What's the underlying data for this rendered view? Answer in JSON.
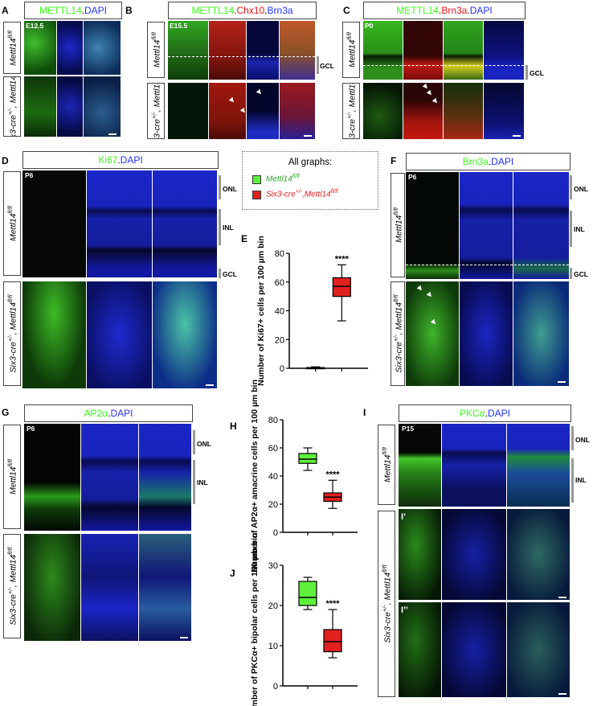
{
  "panels": {
    "A": {
      "letter": "A",
      "header": [
        {
          "t": "METTL14",
          "c": "#39ff14"
        },
        {
          "t": ".",
          "c": "#000"
        },
        {
          "t": "DAPI",
          "c": "#2330ff"
        }
      ],
      "stage": "E12.5",
      "rows": [
        "Mettl14fl/fl",
        "Six3-cre+/-, Mettl14fl/fl"
      ]
    },
    "B": {
      "letter": "B",
      "header": [
        {
          "t": "METTL14",
          "c": "#39ff14"
        },
        {
          "t": ".",
          "c": "#000"
        },
        {
          "t": "Chx10",
          "c": "#e8151b"
        },
        {
          "t": ".",
          "c": "#000"
        },
        {
          "t": "Brn3a",
          "c": "#2330ff"
        }
      ],
      "stage": "E15.5",
      "layer": "GCL",
      "rows": [
        "Mettl14fl/fl",
        "Six3-cre+/-, Mettl14fl/fl"
      ]
    },
    "C": {
      "letter": "C",
      "header": [
        {
          "t": "METTL14",
          "c": "#39ff14"
        },
        {
          "t": ".",
          "c": "#000"
        },
        {
          "t": "Brn3a",
          "c": "#e8151b"
        },
        {
          "t": ".",
          "c": "#000"
        },
        {
          "t": "DAPI",
          "c": "#2330ff"
        }
      ],
      "stage": "P0",
      "layer": "GCL",
      "rows": [
        "Mettl14fl/fl",
        "Six3-cre+/-, Mettl14fl/fl"
      ]
    },
    "D": {
      "letter": "D",
      "header": [
        {
          "t": "Ki67",
          "c": "#39ff14"
        },
        {
          "t": ".",
          "c": "#000"
        },
        {
          "t": "DAPI",
          "c": "#2330ff"
        }
      ],
      "stage": "P6",
      "layers": [
        "ONL",
        "INL",
        "GCL"
      ],
      "rows": [
        "Mettl14fl/fl",
        "Six3-cre+/-, Mettl14fl/fl"
      ]
    },
    "F": {
      "letter": "F",
      "header": [
        {
          "t": "Brn3a",
          "c": "#39ff14"
        },
        {
          "t": ".",
          "c": "#000"
        },
        {
          "t": "DAPI",
          "c": "#2330ff"
        }
      ],
      "stage": "P6",
      "layers": [
        "ONL",
        "INL",
        "GCL"
      ],
      "rows": [
        "Mettl14fl/fl",
        "Six3-cre+/-, Mettl14fl/fl"
      ]
    },
    "G": {
      "letter": "G",
      "header": [
        {
          "t": "AP2α",
          "c": "#39ff14"
        },
        {
          "t": ".",
          "c": "#000"
        },
        {
          "t": "DAPI",
          "c": "#2330ff"
        }
      ],
      "stage": "P6",
      "layers": [
        "ONL",
        "INL"
      ],
      "rows": [
        "Mettl14fl/fl",
        "Six3-cre+/-, Mettl14fl/fl"
      ]
    },
    "I": {
      "letter": "I",
      "header": [
        {
          "t": "PKCα",
          "c": "#39ff14"
        },
        {
          "t": ".",
          "c": "#000"
        },
        {
          "t": "DAPI",
          "c": "#2330ff"
        }
      ],
      "stage": "P15",
      "layers": [
        "ONL",
        "INL"
      ],
      "sublabels": [
        "I’",
        "I’’"
      ],
      "rows": [
        "Mettl14fl/fl",
        "Six3-cre+/-, Mettl14fl/fl"
      ]
    }
  },
  "legend": {
    "title": "All graphs:",
    "items": [
      {
        "label": "Mettl14fl/fl",
        "color": "#5ef03c"
      },
      {
        "label": "Six3-cre+/-,Mettl14fl/fl",
        "color": "#e0211f"
      }
    ]
  },
  "chart_data": [
    {
      "panel": "E",
      "type": "box",
      "ylabel": "Number of Ki67+ cells per 100 µm bin",
      "ylim": [
        0,
        80
      ],
      "yticks": [
        0,
        20,
        40,
        60,
        80
      ],
      "significance": "****",
      "series": [
        {
          "name": "Mettl14fl/fl",
          "color": "#5ef03c",
          "min": 0,
          "q1": 0,
          "median": 0.3,
          "q3": 0.5,
          "max": 1
        },
        {
          "name": "Six3-cre+/-,Mettl14fl/fl",
          "color": "#e0211f",
          "min": 33,
          "q1": 50,
          "median": 57,
          "q3": 63,
          "max": 72
        }
      ]
    },
    {
      "panel": "H",
      "type": "box",
      "ylabel": "Number of AP2α+ amacrine cells per 100 µm bin",
      "ylim": [
        0,
        80
      ],
      "yticks": [
        0,
        20,
        40,
        60,
        80
      ],
      "significance": "****",
      "series": [
        {
          "name": "Mettl14fl/fl",
          "color": "#5ef03c",
          "min": 44,
          "q1": 49,
          "median": 52,
          "q3": 56,
          "max": 60
        },
        {
          "name": "Six3-cre+/-,Mettl14fl/fl",
          "color": "#e0211f",
          "min": 17,
          "q1": 22,
          "median": 25,
          "q3": 28,
          "max": 37
        }
      ]
    },
    {
      "panel": "J",
      "type": "box",
      "ylabel": "Number of PKCα+ bipolar cells per 100 µm bin",
      "ylim": [
        0,
        30
      ],
      "yticks": [
        0,
        10,
        20,
        30
      ],
      "significance": "****",
      "series": [
        {
          "name": "Mettl14fl/fl",
          "color": "#5ef03c",
          "min": 19,
          "q1": 20,
          "median": 22,
          "q3": 26,
          "max": 27
        },
        {
          "name": "Six3-cre+/-,Mettl14fl/fl",
          "color": "#e0211f",
          "min": 7,
          "q1": 8.5,
          "median": 11,
          "q3": 14,
          "max": 19
        }
      ]
    }
  ]
}
